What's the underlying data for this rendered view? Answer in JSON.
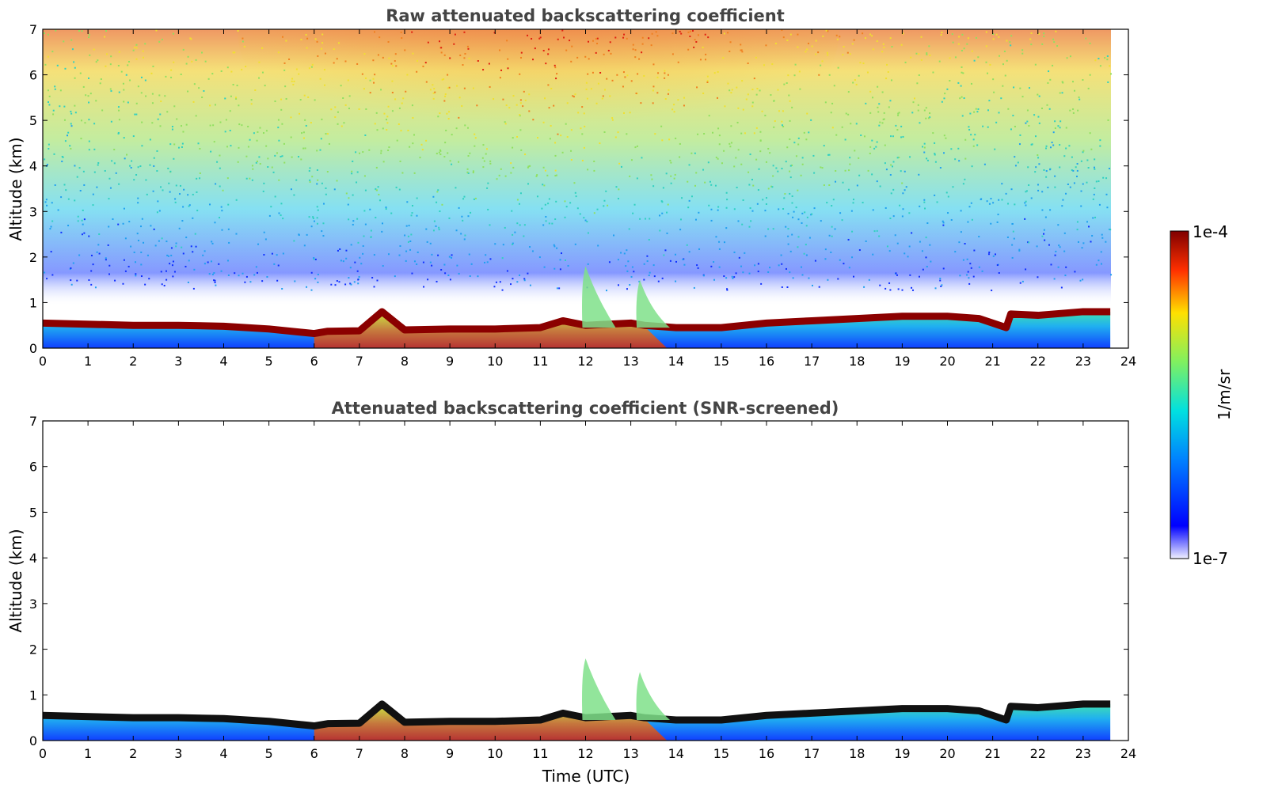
{
  "chart_data": [
    {
      "type": "heatmap",
      "title": "Raw attenuated backscattering coefficient",
      "xlabel": "",
      "ylabel": "Altitude (km)",
      "xlim": [
        0,
        24
      ],
      "ylim": [
        0,
        7
      ],
      "xticks": [
        "0",
        "1",
        "2",
        "3",
        "4",
        "5",
        "6",
        "7",
        "8",
        "9",
        "10",
        "11",
        "12",
        "13",
        "14",
        "15",
        "16",
        "17",
        "18",
        "19",
        "20",
        "21",
        "22",
        "23",
        "24"
      ],
      "yticks": [
        "0",
        "1",
        "2",
        "3",
        "4",
        "5",
        "6",
        "7"
      ],
      "data_end_hour": 23.6,
      "boundary_layer_top_km": [
        [
          0,
          0.55
        ],
        [
          2,
          0.5
        ],
        [
          3,
          0.5
        ],
        [
          4,
          0.48
        ],
        [
          5,
          0.42
        ],
        [
          6,
          0.32
        ],
        [
          6.3,
          0.37
        ],
        [
          7,
          0.38
        ],
        [
          7.5,
          0.8
        ],
        [
          8,
          0.4
        ],
        [
          9,
          0.42
        ],
        [
          10,
          0.42
        ],
        [
          11,
          0.45
        ],
        [
          11.5,
          0.6
        ],
        [
          12,
          0.5
        ],
        [
          13,
          0.55
        ],
        [
          13.3,
          0.5
        ],
        [
          14,
          0.45
        ],
        [
          15,
          0.45
        ],
        [
          16,
          0.55
        ],
        [
          17,
          0.6
        ],
        [
          18,
          0.65
        ],
        [
          19,
          0.7
        ],
        [
          20,
          0.7
        ],
        [
          20.7,
          0.65
        ],
        [
          21.3,
          0.45
        ],
        [
          21.4,
          0.75
        ],
        [
          22,
          0.72
        ],
        [
          23,
          0.8
        ],
        [
          23.6,
          0.8
        ]
      ],
      "upper_noise": "strong noisy signal aloft, maximum near 9-13 UTC above 4 km"
    },
    {
      "type": "heatmap",
      "title": "Attenuated backscattering coefficient (SNR-screened)",
      "xlabel": "Time (UTC)",
      "ylabel": "Altitude (km)",
      "xlim": [
        0,
        24
      ],
      "ylim": [
        0,
        7
      ],
      "xticks": [
        "0",
        "1",
        "2",
        "3",
        "4",
        "5",
        "6",
        "7",
        "8",
        "9",
        "10",
        "11",
        "12",
        "13",
        "14",
        "15",
        "16",
        "17",
        "18",
        "19",
        "20",
        "21",
        "22",
        "23",
        "24"
      ],
      "yticks": [
        "0",
        "1",
        "2",
        "3",
        "4",
        "5",
        "6",
        "7"
      ],
      "data_end_hour": 23.6,
      "convective_plumes": [
        {
          "time_h": 12.0,
          "top_km": 1.8
        },
        {
          "time_h": 13.2,
          "top_km": 1.5
        }
      ]
    }
  ],
  "colorbar": {
    "label": "1/m/sr",
    "max_label": "1e-4",
    "min_label": "1e-7",
    "colormap": "jet"
  }
}
